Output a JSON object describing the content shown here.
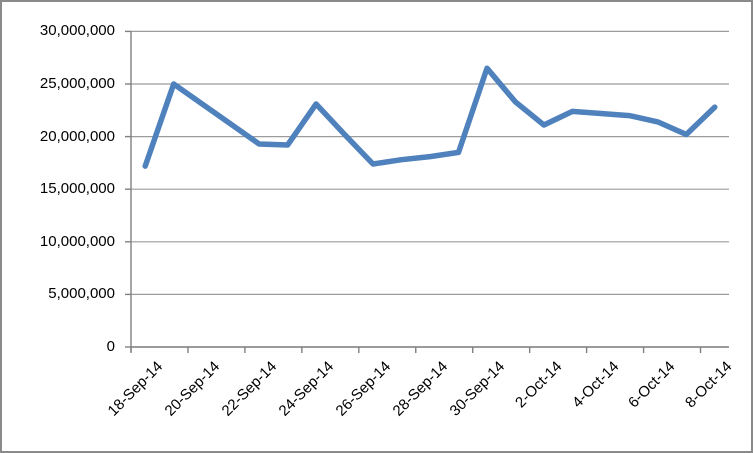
{
  "chart": {
    "background": "#FFFFFF",
    "border_color": "#8A8A8A"
  },
  "chart_data": {
    "type": "line",
    "title": "",
    "xlabel": "",
    "ylabel": "",
    "x": [
      "18-Sep-14",
      "19-Sep-14",
      "20-Sep-14",
      "21-Sep-14",
      "22-Sep-14",
      "23-Sep-14",
      "24-Sep-14",
      "25-Sep-14",
      "26-Sep-14",
      "27-Sep-14",
      "28-Sep-14",
      "29-Sep-14",
      "30-Sep-14",
      "1-Oct-14",
      "2-Oct-14",
      "3-Oct-14",
      "4-Oct-14",
      "5-Oct-14",
      "6-Oct-14",
      "7-Oct-14",
      "8-Oct-14"
    ],
    "values": [
      17200000,
      25000000,
      23100000,
      21200000,
      19300000,
      19200000,
      23100000,
      20200000,
      17400000,
      17800000,
      18100000,
      18500000,
      26500000,
      23300000,
      21100000,
      22400000,
      22200000,
      22000000,
      21400000,
      20200000,
      22800000
    ],
    "xticklabels": [
      "18-Sep-14",
      "20-Sep-14",
      "22-Sep-14",
      "24-Sep-14",
      "26-Sep-14",
      "28-Sep-14",
      "30-Sep-14",
      "2-Oct-14",
      "4-Oct-14",
      "6-Oct-14",
      "8-Oct-14"
    ],
    "yticklabels": [
      "30,000,000",
      "25,000,000",
      "20,000,000",
      "15,000,000",
      "10,000,000",
      "5,000,000",
      "0"
    ],
    "ylim": [
      0,
      30000000
    ],
    "ytick_interval": 5000000,
    "grid": "horizontal",
    "legend": "none",
    "line_color": "#4F81BD",
    "gridline_color": "#9C9C9C",
    "axis_color": "#808080",
    "label_color": "#000000"
  }
}
